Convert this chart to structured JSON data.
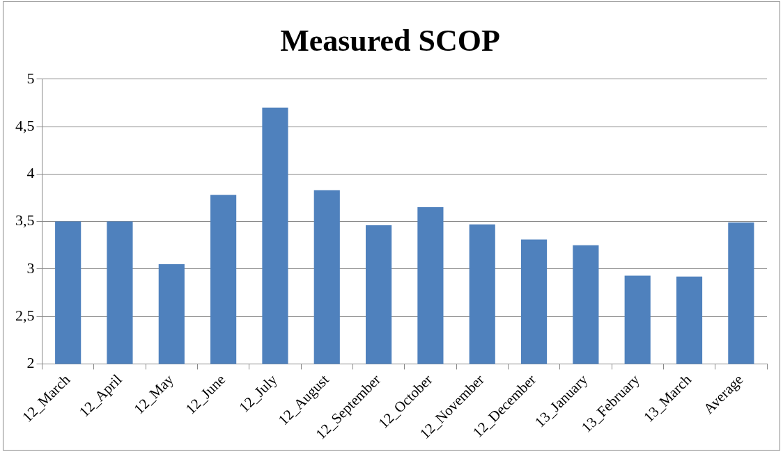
{
  "chart_data": {
    "type": "bar",
    "title": "Measured SCOP",
    "categories": [
      "12_March",
      "12_April",
      "12_May",
      "12_June",
      "12_July",
      "12_August",
      "12_September",
      "12_October",
      "12_November",
      "12_December",
      "13_January",
      "13_February",
      "13_March",
      "Average"
    ],
    "values": [
      3.5,
      3.5,
      3.05,
      3.78,
      4.7,
      3.83,
      3.46,
      3.65,
      3.47,
      3.31,
      3.25,
      2.93,
      2.92,
      3.49
    ],
    "color": "#4f81bd",
    "ylim": [
      2,
      5
    ],
    "yticks": [
      2,
      {
        "value": 2.5,
        "label": "2,5"
      },
      3,
      {
        "value": 3.5,
        "label": "3,5"
      },
      4,
      {
        "value": 4.5,
        "label": "4,5"
      },
      5
    ],
    "grid": "y"
  }
}
